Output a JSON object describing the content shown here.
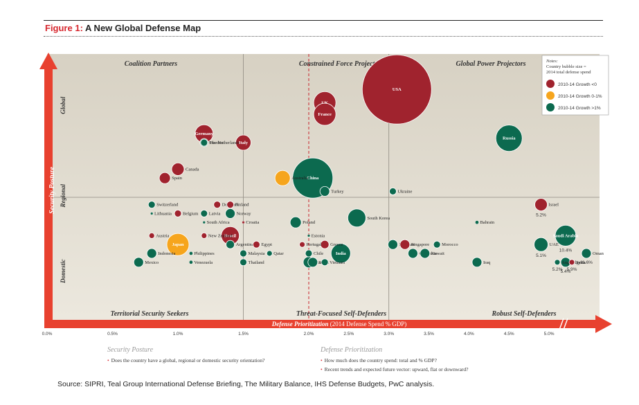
{
  "figure": {
    "number_label": "Figure 1:",
    "title": " A New Global Defense Map"
  },
  "notes": {
    "title": "Notes:",
    "lines": [
      "Country bubble size =",
      "2014 total defense spend"
    ],
    "legend": [
      {
        "label": "2010-14 Growth <0",
        "color": "#a0232e"
      },
      {
        "label": "2010-14 Growth 0-1%",
        "color": "#f6a51d"
      },
      {
        "label": "2010-14 Growth >1%",
        "color": "#0c6a4f"
      }
    ]
  },
  "quadrant_labels": {
    "top": [
      "Coalition Partners",
      "Constrained Force Projectors",
      "Global Power Projectors"
    ],
    "bottom": [
      "Territorial Security Seekers",
      "Threat-Focused Self-Defenders",
      "Robust Self-Defenders"
    ]
  },
  "footer": {
    "security_posture": {
      "heading": "Security Posture",
      "items": [
        "Does the country have a global, regional or domestic security orientation?"
      ]
    },
    "defense_prioritization": {
      "heading": "Defense Prioritization",
      "items": [
        "How much does the country spend: total and % GDP?",
        "Recent trends and expected future vector: upward, flat or downward?"
      ]
    }
  },
  "source": "Source: SIPRI, Teal Group International Defense Briefing, The Military Balance, IHS Defense Budgets, PwC analysis.",
  "chart_data": {
    "type": "scatter",
    "xlabel": "Defense Prioritization",
    "xlabel_sub": " (2014 Defense Spend % GDP)",
    "ylabel": "Security Posture",
    "y_categories": [
      "Domestic",
      "Regional",
      "Global"
    ],
    "x_ticks": [
      "0.0%",
      "0.5%",
      "1.0%",
      "1.5%",
      "2.0%",
      "2.5%",
      "3.0%",
      "3.5%",
      "4.0%",
      "4.5%",
      "5.0%"
    ],
    "x_break_after": 5.0,
    "colors": {
      "neg": "#a0232e",
      "mid": "#f6a51d",
      "pos": "#0c6a4f"
    },
    "points": [
      {
        "name": "USA",
        "x": 3.1,
        "y": 2.6,
        "size": 50,
        "growth": "neg"
      },
      {
        "name": "UK",
        "x": 2.2,
        "y": 2.45,
        "size": 16,
        "growth": "neg"
      },
      {
        "name": "France",
        "x": 2.2,
        "y": 2.32,
        "size": 16,
        "growth": "neg"
      },
      {
        "name": "Russia",
        "x": 4.5,
        "y": 2.05,
        "size": 19,
        "growth": "pos"
      },
      {
        "name": "Germany",
        "x": 1.2,
        "y": 2.1,
        "size": 13,
        "growth": "neg"
      },
      {
        "name": "Italy",
        "x": 1.5,
        "y": 2.0,
        "size": 11,
        "growth": "neg"
      },
      {
        "name": "The Netherlands",
        "x": 1.2,
        "y": 2.0,
        "size": 6,
        "growth": "pos"
      },
      {
        "name": "Sweden",
        "x": 1.2,
        "y": 2.0,
        "size": 5,
        "growth": "pos"
      },
      {
        "name": "Canada",
        "x": 1.0,
        "y": 1.7,
        "size": 9,
        "growth": "neg"
      },
      {
        "name": "Spain",
        "x": 0.9,
        "y": 1.6,
        "size": 8,
        "growth": "neg"
      },
      {
        "name": "Australia",
        "x": 1.8,
        "y": 1.6,
        "size": 11,
        "growth": "mid"
      },
      {
        "name": "China",
        "x": 2.05,
        "y": 1.6,
        "size": 29,
        "growth": "pos"
      },
      {
        "name": "Turkey",
        "x": 2.2,
        "y": 1.45,
        "size": 7,
        "growth": "pos"
      },
      {
        "name": "Ukraine",
        "x": 3.05,
        "y": 1.45,
        "size": 5,
        "growth": "pos"
      },
      {
        "name": "Israel",
        "x": 4.9,
        "y": 1.3,
        "size": 9,
        "growth": "neg",
        "label": "5.2%"
      },
      {
        "name": "Switzerland",
        "x": 0.8,
        "y": 1.3,
        "size": 5,
        "growth": "pos"
      },
      {
        "name": "Denmark",
        "x": 1.3,
        "y": 1.3,
        "size": 5,
        "growth": "neg"
      },
      {
        "name": "Finland",
        "x": 1.4,
        "y": 1.3,
        "size": 5,
        "growth": "neg"
      },
      {
        "name": "Belgium",
        "x": 1.0,
        "y": 1.2,
        "size": 5,
        "growth": "neg"
      },
      {
        "name": "Lithuania",
        "x": 0.8,
        "y": 1.2,
        "size": 1.8,
        "growth": "pos"
      },
      {
        "name": "Latvia",
        "x": 1.2,
        "y": 1.2,
        "size": 5,
        "growth": "pos"
      },
      {
        "name": "Norway",
        "x": 1.4,
        "y": 1.2,
        "size": 7,
        "growth": "pos"
      },
      {
        "name": "South Africa",
        "x": 1.2,
        "y": 1.1,
        "size": 1.8,
        "growth": "pos"
      },
      {
        "name": "Croatia",
        "x": 1.5,
        "y": 1.1,
        "size": 1.8,
        "growth": "neg"
      },
      {
        "name": "Poland",
        "x": 1.9,
        "y": 1.1,
        "size": 8,
        "growth": "pos"
      },
      {
        "name": "South Korea",
        "x": 2.6,
        "y": 1.15,
        "size": 13,
        "growth": "pos"
      },
      {
        "name": "Bahrain",
        "x": 4.1,
        "y": 1.1,
        "size": 2.5,
        "growth": "pos"
      },
      {
        "name": "Austria",
        "x": 0.8,
        "y": 0.95,
        "size": 4,
        "growth": "neg"
      },
      {
        "name": "New Zealand",
        "x": 1.2,
        "y": 0.95,
        "size": 4,
        "growth": "neg"
      },
      {
        "name": "Brazil",
        "x": 1.4,
        "y": 0.95,
        "size": 13,
        "growth": "neg"
      },
      {
        "name": "Estonia",
        "x": 2.0,
        "y": 0.95,
        "size": 1.8,
        "growth": "pos"
      },
      {
        "name": "Saudi Arabia",
        "x": 5.4,
        "y": 0.95,
        "size": 15,
        "growth": "pos",
        "label": "10.4%"
      },
      {
        "name": "Japan",
        "x": 1.0,
        "y": 0.85,
        "size": 16,
        "growth": "mid"
      },
      {
        "name": "Argentina",
        "x": 1.4,
        "y": 0.85,
        "size": 6,
        "growth": "pos"
      },
      {
        "name": "Egypt",
        "x": 1.6,
        "y": 0.85,
        "size": 5,
        "growth": "neg"
      },
      {
        "name": "Portugal",
        "x": 1.95,
        "y": 0.85,
        "size": 4,
        "growth": "neg"
      },
      {
        "name": "Greece",
        "x": 2.2,
        "y": 0.85,
        "size": 6,
        "growth": "neg"
      },
      {
        "name": "Pakistan",
        "x": 3.05,
        "y": 0.85,
        "size": 7,
        "growth": "pos"
      },
      {
        "name": "Singapore",
        "x": 3.2,
        "y": 0.85,
        "size": 7,
        "growth": "neg"
      },
      {
        "name": "Morocco",
        "x": 3.6,
        "y": 0.85,
        "size": 5,
        "growth": "pos"
      },
      {
        "name": "UAE",
        "x": 4.9,
        "y": 0.85,
        "size": 10,
        "growth": "pos",
        "label": "5.1%"
      },
      {
        "name": "Philippines",
        "x": 1.1,
        "y": 0.75,
        "size": 2.5,
        "growth": "pos"
      },
      {
        "name": "Malaysia",
        "x": 1.5,
        "y": 0.75,
        "size": 5,
        "growth": "pos"
      },
      {
        "name": "Qatar",
        "x": 1.7,
        "y": 0.75,
        "size": 4,
        "growth": "pos"
      },
      {
        "name": "Chile",
        "x": 2.0,
        "y": 0.75,
        "size": 5,
        "growth": "pos"
      },
      {
        "name": "India",
        "x": 2.4,
        "y": 0.75,
        "size": 14,
        "growth": "pos"
      },
      {
        "name": "Colombia",
        "x": 3.3,
        "y": 0.75,
        "size": 7,
        "growth": "pos"
      },
      {
        "name": "Kuwait",
        "x": 3.45,
        "y": 0.75,
        "size": 7,
        "growth": "pos"
      },
      {
        "name": "Oman",
        "x": 5.9,
        "y": 0.75,
        "size": 7,
        "growth": "pos",
        "label": "11.6%"
      },
      {
        "name": "Indonesia",
        "x": 0.8,
        "y": 0.75,
        "size": 7,
        "growth": "pos"
      },
      {
        "name": "Mexico",
        "x": 0.7,
        "y": 0.65,
        "size": 7,
        "growth": "pos"
      },
      {
        "name": "Venezuela",
        "x": 1.1,
        "y": 0.65,
        "size": 2.5,
        "growth": "pos"
      },
      {
        "name": "Thailand",
        "x": 1.5,
        "y": 0.65,
        "size": 5,
        "growth": "pos"
      },
      {
        "name": "Taiwan",
        "x": 2.0,
        "y": 0.65,
        "size": 8,
        "growth": "pos"
      },
      {
        "name": "Iran",
        "x": 2.05,
        "y": 0.65,
        "size": 7,
        "growth": "pos"
      },
      {
        "name": "Vietnam",
        "x": 2.2,
        "y": 0.65,
        "size": 5,
        "growth": "pos"
      },
      {
        "name": "Iraq",
        "x": 4.1,
        "y": 0.65,
        "size": 7,
        "growth": "pos"
      },
      {
        "name": "Angola",
        "x": 5.2,
        "y": 0.65,
        "size": 4,
        "growth": "pos",
        "label": "5.2%"
      },
      {
        "name": "Algeria",
        "x": 5.4,
        "y": 0.65,
        "size": 7,
        "growth": "pos",
        "label": "5.4%"
      },
      {
        "name": "Syria",
        "x": 5.55,
        "y": 0.65,
        "size": 4,
        "growth": "neg",
        "label": "5.9%"
      }
    ]
  }
}
